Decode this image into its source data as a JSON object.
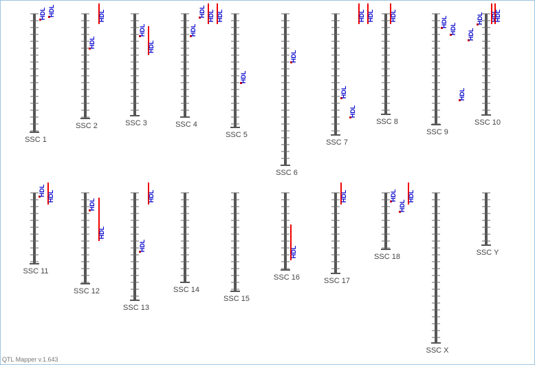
{
  "chromosomes": [
    {
      "label": "SSC 1",
      "qtls": [
        {
          "label": "HDL"
        },
        {
          "label": "HDL"
        }
      ]
    },
    {
      "label": "SSC 2",
      "qtls": [
        {
          "label": "HDL"
        },
        {
          "label": "HDL"
        }
      ]
    },
    {
      "label": "SSC 3",
      "qtls": [
        {
          "label": "HDL"
        },
        {
          "label": "HDL"
        }
      ]
    },
    {
      "label": "SSC 4",
      "qtls": [
        {
          "label": "HDL"
        },
        {
          "label": "HDL"
        },
        {
          "label": "HDL"
        },
        {
          "label": "HDL"
        }
      ]
    },
    {
      "label": "SSC 5",
      "qtls": [
        {
          "label": "HDL"
        }
      ]
    },
    {
      "label": "SSC 6",
      "qtls": [
        {
          "label": "HDL"
        }
      ]
    },
    {
      "label": "SSC 7",
      "qtls": [
        {
          "label": "HDL"
        },
        {
          "label": "HDL"
        }
      ]
    },
    {
      "label": "SSC 8",
      "qtls": [
        {
          "label": "HDL"
        },
        {
          "label": "HDL"
        },
        {
          "label": "HDL"
        }
      ]
    },
    {
      "label": "SSC 9",
      "qtls": [
        {
          "label": "HDL"
        },
        {
          "label": "HDL"
        },
        {
          "label": "HDL"
        }
      ]
    },
    {
      "label": "SSC 10",
      "qtls": [
        {
          "label": "HDL"
        },
        {
          "label": "HDL"
        },
        {
          "label": "HDL"
        },
        {
          "label": "HDL"
        }
      ]
    },
    {
      "label": "SSC 11",
      "qtls": [
        {
          "label": "HDL"
        },
        {
          "label": "HDL"
        }
      ]
    },
    {
      "label": "SSC 12",
      "qtls": [
        {
          "label": "HDL"
        },
        {
          "label": "HDL"
        }
      ]
    },
    {
      "label": "SSC 13",
      "qtls": [
        {
          "label": "HDL"
        },
        {
          "label": "HDL"
        }
      ]
    },
    {
      "label": "SSC 14",
      "qtls": []
    },
    {
      "label": "SSC 15",
      "qtls": []
    },
    {
      "label": "SSC 16",
      "qtls": [
        {
          "label": "HDL"
        }
      ]
    },
    {
      "label": "SSC 17",
      "qtls": [
        {
          "label": "HDL"
        }
      ]
    },
    {
      "label": "SSC 18",
      "qtls": [
        {
          "label": "HDL"
        },
        {
          "label": "HDL"
        },
        {
          "label": "HDL"
        }
      ]
    },
    {
      "label": "SSC X",
      "qtls": []
    },
    {
      "label": "SSC Y",
      "qtls": []
    }
  ],
  "footer": "QTL Mapper v.1.643"
}
